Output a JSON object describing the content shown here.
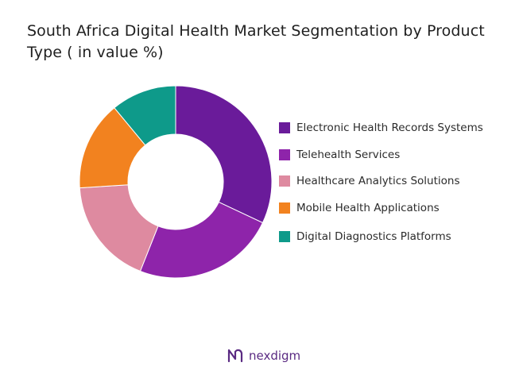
{
  "chart_data": {
    "type": "pie",
    "variant": "donut",
    "title": "South Africa Digital Health Market Segmentation by Product Type ( in value %)",
    "legend_position": "right",
    "slices": [
      {
        "label": "Electronic Health Records Systems",
        "value": 32,
        "color": "#6a1b9a"
      },
      {
        "label": "Telehealth Services",
        "value": 24,
        "color": "#8e24aa"
      },
      {
        "label": "Healthcare Analytics Solutions",
        "value": 18,
        "color": "#de8aa0"
      },
      {
        "label": "Mobile Health Applications",
        "value": 15,
        "color": "#f2821f"
      },
      {
        "label": "Digital Diagnostics Platforms",
        "value": 11,
        "color": "#0e9a8a"
      }
    ]
  },
  "brand": {
    "name": "nexdigm",
    "color": "#5a2a82"
  }
}
